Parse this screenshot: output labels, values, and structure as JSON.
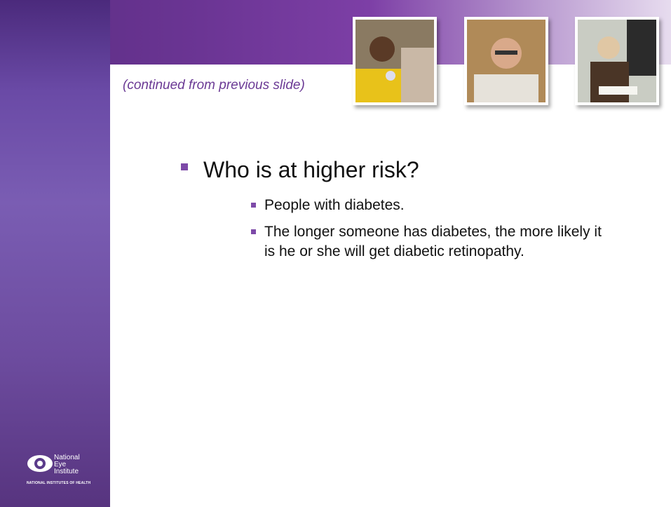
{
  "slide": {
    "subtitle": "(continued from previous slide)",
    "bullets": [
      {
        "text": "Who is at higher risk?",
        "sub_bullets": [
          "People with diabetes.",
          "The longer someone has diabetes, the more likely it is he or she will get diabetic retinopathy."
        ]
      }
    ],
    "logo": {
      "name_lines": [
        "National",
        "Eye",
        "Institute"
      ],
      "org": "NATIONAL INSTITUTES OF HEALTH"
    }
  }
}
